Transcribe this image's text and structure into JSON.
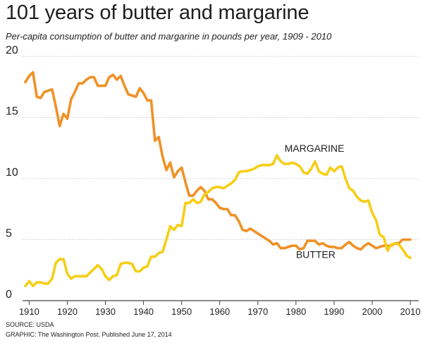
{
  "chart_data": {
    "type": "line",
    "title": "101 years of butter and margarine",
    "subtitle": "Per-capita consumption of butter and margarine in pounds per year, 1909 - 2010",
    "xlabel": "",
    "ylabel": "",
    "xlim": [
      1909,
      2010
    ],
    "ylim": [
      0,
      20
    ],
    "x_ticks": [
      "1910",
      "1920",
      "1930",
      "1940",
      "1950",
      "1960",
      "1970",
      "1980",
      "1990",
      "2000",
      "2010"
    ],
    "y_ticks": [
      "0",
      "5",
      "10",
      "15",
      "20"
    ],
    "grid": "horizontal",
    "series": [
      {
        "name": "BUTTER",
        "color": "#f09126",
        "x": [
          1909,
          1910,
          1911,
          1912,
          1913,
          1914,
          1915,
          1916,
          1917,
          1918,
          1919,
          1920,
          1921,
          1922,
          1923,
          1924,
          1925,
          1926,
          1927,
          1928,
          1929,
          1930,
          1931,
          1932,
          1933,
          1934,
          1935,
          1936,
          1937,
          1938,
          1939,
          1940,
          1941,
          1942,
          1943,
          1944,
          1945,
          1946,
          1947,
          1948,
          1949,
          1950,
          1951,
          1952,
          1953,
          1954,
          1955,
          1956,
          1957,
          1958,
          1959,
          1960,
          1961,
          1962,
          1963,
          1964,
          1965,
          1966,
          1967,
          1968,
          1969,
          1970,
          1971,
          1972,
          1973,
          1974,
          1975,
          1976,
          1977,
          1978,
          1979,
          1980,
          1981,
          1982,
          1983,
          1984,
          1985,
          1986,
          1987,
          1988,
          1989,
          1990,
          1991,
          1992,
          1993,
          1994,
          1995,
          1996,
          1997,
          1998,
          1999,
          2000,
          2001,
          2002,
          2003,
          2004,
          2005,
          2006,
          2007,
          2008,
          2009,
          2010
        ],
        "values": [
          17.9,
          18.4,
          18.7,
          16.7,
          16.6,
          17.1,
          17.2,
          17.3,
          15.9,
          14.3,
          15.3,
          14.9,
          16.5,
          17.1,
          17.8,
          17.8,
          18.1,
          18.3,
          18.3,
          17.6,
          17.6,
          17.6,
          18.3,
          18.5,
          18.1,
          18.4,
          17.6,
          16.9,
          16.8,
          16.7,
          17.4,
          17.0,
          16.4,
          16.4,
          13.1,
          13.4,
          11.8,
          10.7,
          11.3,
          10.1,
          10.6,
          10.9,
          9.7,
          8.6,
          8.6,
          9.0,
          9.3,
          9.0,
          8.3,
          8.3,
          8.0,
          7.6,
          7.5,
          7.5,
          7.0,
          7.0,
          6.5,
          5.8,
          5.7,
          5.9,
          5.7,
          5.5,
          5.3,
          5.1,
          4.9,
          4.6,
          4.7,
          4.3,
          4.3,
          4.4,
          4.5,
          4.5,
          4.2,
          4.3,
          4.9,
          4.9,
          4.9,
          4.6,
          4.7,
          4.5,
          4.4,
          4.4,
          4.3,
          4.3,
          4.6,
          4.8,
          4.5,
          4.3,
          4.2,
          4.5,
          4.7,
          4.5,
          4.3,
          4.4,
          4.5,
          4.5,
          4.5,
          4.7,
          4.7,
          5.0,
          5.0,
          5.0
        ]
      },
      {
        "name": "MARGARINE",
        "color": "#f6ce15",
        "x": [
          1909,
          1910,
          1911,
          1912,
          1913,
          1914,
          1915,
          1916,
          1917,
          1918,
          1919,
          1920,
          1921,
          1922,
          1923,
          1924,
          1925,
          1926,
          1927,
          1928,
          1929,
          1930,
          1931,
          1932,
          1933,
          1934,
          1935,
          1936,
          1937,
          1938,
          1939,
          1940,
          1941,
          1942,
          1943,
          1944,
          1945,
          1946,
          1947,
          1948,
          1949,
          1950,
          1951,
          1952,
          1953,
          1954,
          1955,
          1956,
          1957,
          1958,
          1959,
          1960,
          1961,
          1962,
          1963,
          1964,
          1965,
          1966,
          1967,
          1968,
          1969,
          1970,
          1971,
          1972,
          1973,
          1974,
          1975,
          1976,
          1977,
          1978,
          1979,
          1980,
          1981,
          1982,
          1983,
          1984,
          1985,
          1986,
          1987,
          1988,
          1989,
          1990,
          1991,
          1992,
          1993,
          1994,
          1995,
          1996,
          1997,
          1998,
          1999,
          2000,
          2001,
          2002,
          2003,
          2004,
          2005,
          2006,
          2007,
          2008,
          2009,
          2010
        ],
        "values": [
          1.2,
          1.6,
          1.2,
          1.5,
          1.5,
          1.4,
          1.4,
          1.8,
          3.1,
          3.4,
          3.4,
          2.2,
          1.8,
          2.0,
          2.0,
          2.0,
          2.0,
          2.3,
          2.6,
          2.9,
          2.6,
          2.0,
          1.7,
          2.0,
          2.1,
          3.0,
          3.1,
          3.1,
          3.0,
          2.4,
          2.4,
          2.7,
          2.8,
          3.6,
          3.6,
          3.9,
          4.0,
          5.0,
          6.1,
          5.8,
          6.2,
          6.1,
          8.0,
          8.0,
          8.3,
          8.0,
          8.1,
          8.7,
          8.9,
          9.2,
          9.3,
          9.3,
          9.2,
          9.4,
          9.6,
          9.9,
          10.5,
          10.6,
          10.6,
          10.7,
          10.8,
          11.0,
          11.1,
          11.1,
          11.1,
          11.2,
          11.9,
          11.4,
          11.2,
          11.2,
          11.3,
          11.2,
          11.0,
          10.5,
          10.4,
          10.8,
          11.4,
          10.6,
          10.4,
          10.3,
          10.9,
          10.6,
          10.9,
          11.0,
          10.0,
          9.2,
          9.0,
          8.5,
          8.2,
          8.1,
          8.2,
          7.2,
          6.6,
          5.4,
          5.2,
          4.1,
          4.6,
          4.7,
          4.6,
          4.2,
          3.7,
          3.5
        ]
      }
    ],
    "annotations": [
      {
        "text": "MARGARINE",
        "x": 1977,
        "y": 12.2
      },
      {
        "text": "BUTTER",
        "x": 1980,
        "y": 3.5
      }
    ]
  },
  "footer": {
    "source": "SOURCE: USDA",
    "credit": "GRAPHIC: The Washington Post. Published June 17, 2014"
  }
}
